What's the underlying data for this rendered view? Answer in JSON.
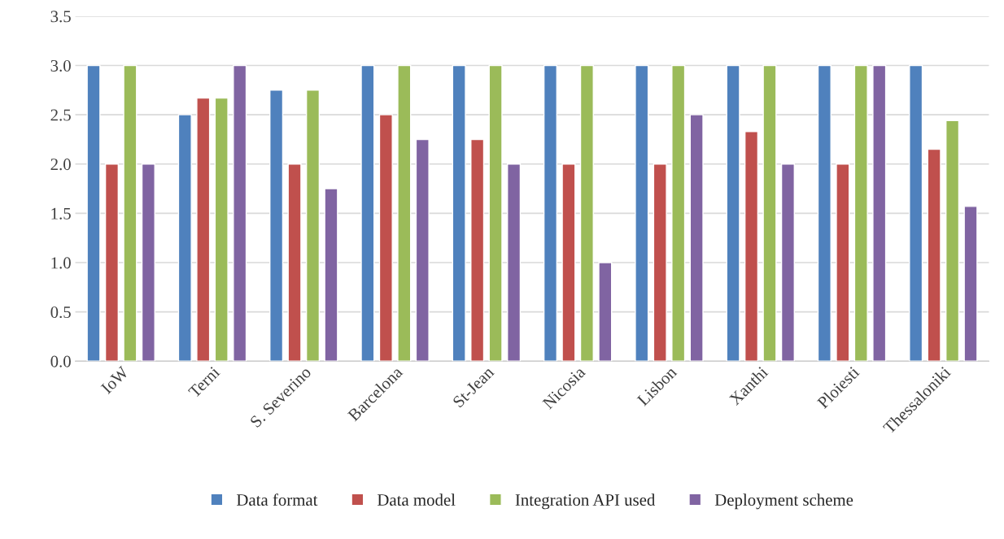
{
  "chart_data": {
    "type": "bar",
    "categories": [
      "IoW",
      "Terni",
      "S. Severino",
      "Barcelona",
      "St-Jean",
      "Nicosia",
      "Lisbon",
      "Xanthi",
      "Ploiesti",
      "Thessaloniki"
    ],
    "series": [
      {
        "name": "Data format",
        "color": "#4f81bd",
        "values": [
          3,
          2.5,
          2.75,
          3,
          3,
          3,
          3,
          3,
          3,
          3
        ]
      },
      {
        "name": "Data model",
        "color": "#c0504d",
        "values": [
          2,
          2.67,
          2,
          2.5,
          2.25,
          2,
          2,
          2.33,
          2,
          2.15
        ]
      },
      {
        "name": "Integration API used",
        "color": "#9bbb59",
        "values": [
          3,
          2.67,
          2.75,
          3,
          3,
          3,
          3,
          3,
          3,
          2.44
        ]
      },
      {
        "name": "Deployment scheme",
        "color": "#8064a2",
        "values": [
          2,
          3,
          1.75,
          2.25,
          2,
          1,
          2.5,
          2,
          3,
          1.57
        ]
      }
    ],
    "ylim": [
      0,
      3.5
    ],
    "yticks": [
      {
        "value": 0,
        "label": "0.0"
      },
      {
        "value": 0.5,
        "label": "0.5"
      },
      {
        "value": 1,
        "label": "1.0"
      },
      {
        "value": 1.5,
        "label": "1.5"
      },
      {
        "value": 2,
        "label": "2.0"
      },
      {
        "value": 2.5,
        "label": "2.5"
      },
      {
        "value": 3,
        "label": "3.0"
      },
      {
        "value": 3.5,
        "label": "3.5"
      }
    ],
    "grid": "y",
    "legend": "bottom"
  }
}
